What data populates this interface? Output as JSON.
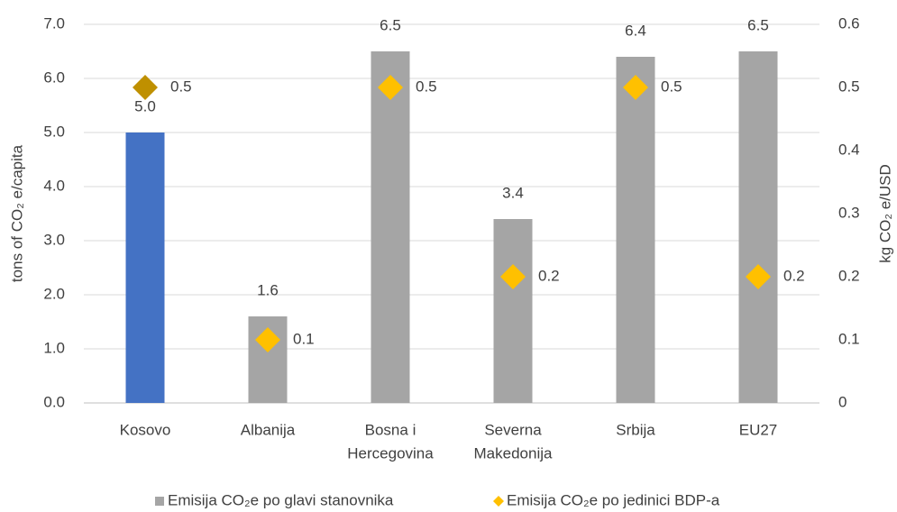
{
  "chart_data": {
    "type": "bar",
    "categories": [
      [
        "Kosovo"
      ],
      [
        "Albanija"
      ],
      [
        "Bosna i",
        "Hercegovina"
      ],
      [
        "Severna",
        "Makedonija"
      ],
      [
        "Srbija"
      ],
      [
        "EU27"
      ]
    ],
    "ylabel": "tons of CO₂ e/capita",
    "y2label": "kg CO₂ e/USD",
    "ylim": [
      0,
      7
    ],
    "yticks": [
      {
        "value": 0,
        "label": "0.0"
      },
      {
        "value": 1,
        "label": "1.0"
      },
      {
        "value": 2,
        "label": "2.0"
      },
      {
        "value": 3,
        "label": "3.0"
      },
      {
        "value": 4,
        "label": "4.0"
      },
      {
        "value": 5,
        "label": "5.0"
      },
      {
        "value": 6,
        "label": "6.0"
      },
      {
        "value": 7,
        "label": "7.0"
      }
    ],
    "y2lim": [
      0,
      0.6
    ],
    "y2ticks": [
      0,
      0.1,
      0.2,
      0.3,
      0.4,
      0.5,
      0.6
    ],
    "grid": true,
    "legend": "bottom",
    "series": [
      {
        "name": "Emisija CO₂e po glavi stanovnika",
        "type": "bar",
        "color": "#a5a5a5",
        "colors": [
          "#4472c4",
          "#a5a5a5",
          "#a5a5a5",
          "#a5a5a5",
          "#a5a5a5",
          "#a5a5a5"
        ],
        "values": [
          5.0,
          1.6,
          6.5,
          3.4,
          6.4,
          6.5
        ],
        "value_labels": [
          "5.0",
          "1.6",
          "6.5",
          "3.4",
          "6.4",
          "6.5"
        ]
      },
      {
        "name": "Emisija CO₂e po jedinici BDP-a",
        "type": "scatter",
        "axis": "y2",
        "color": "#ffc000",
        "colors": [
          "#bf9000",
          "#ffc000",
          "#ffc000",
          "#ffc000",
          "#ffc000",
          "#ffc000"
        ],
        "values": [
          0.5,
          0.1,
          0.5,
          0.2,
          0.5,
          0.2
        ]
      }
    ]
  }
}
